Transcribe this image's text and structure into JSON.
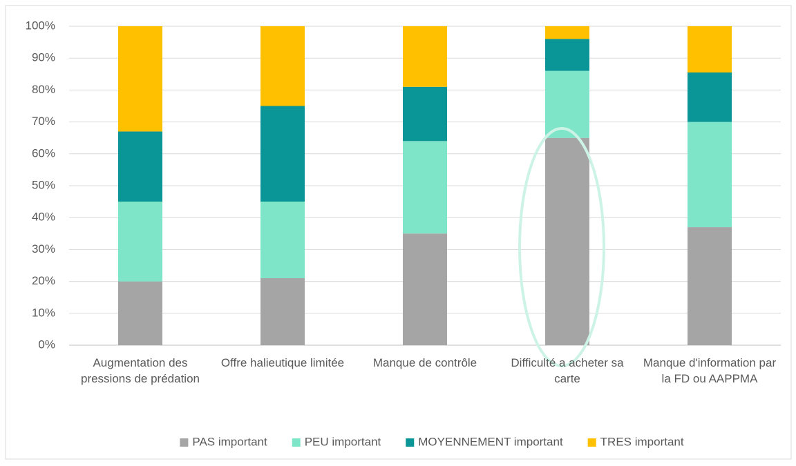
{
  "chart_data": {
    "type": "stacked_bar",
    "categories": [
      "Augmentation des pressions de prédation",
      "Offre halieutique limitée",
      "Manque de contrôle",
      "Difficulté a acheter sa carte",
      "Manque d'information par la FD ou AAPPMA"
    ],
    "series": [
      {
        "name": "PAS important",
        "color": "#a5a5a5",
        "values": [
          20,
          21,
          35,
          65,
          37
        ]
      },
      {
        "name": "PEU important",
        "color": "#7fe5c8",
        "values": [
          25,
          24,
          29,
          21,
          33
        ]
      },
      {
        "name": "MOYENNEMENT important",
        "color": "#0a9696",
        "values": [
          22,
          30,
          17,
          10,
          15.5
        ]
      },
      {
        "name": "TRES important",
        "color": "#ffc000",
        "values": [
          33,
          25,
          19,
          4,
          14.5
        ]
      }
    ],
    "ylim": [
      0,
      100
    ],
    "yticks": [
      {
        "value": 0,
        "label": "0%"
      },
      {
        "value": 10,
        "label": "10%"
      },
      {
        "value": 20,
        "label": "20%"
      },
      {
        "value": 30,
        "label": "30%"
      },
      {
        "value": 40,
        "label": "40%"
      },
      {
        "value": 50,
        "label": "50%"
      },
      {
        "value": 60,
        "label": "60%"
      },
      {
        "value": 70,
        "label": "70%"
      },
      {
        "value": 80,
        "label": "80%"
      },
      {
        "value": 90,
        "label": "90%"
      },
      {
        "value": 100,
        "label": "100%"
      }
    ],
    "grid": true,
    "legend": "bottom"
  }
}
